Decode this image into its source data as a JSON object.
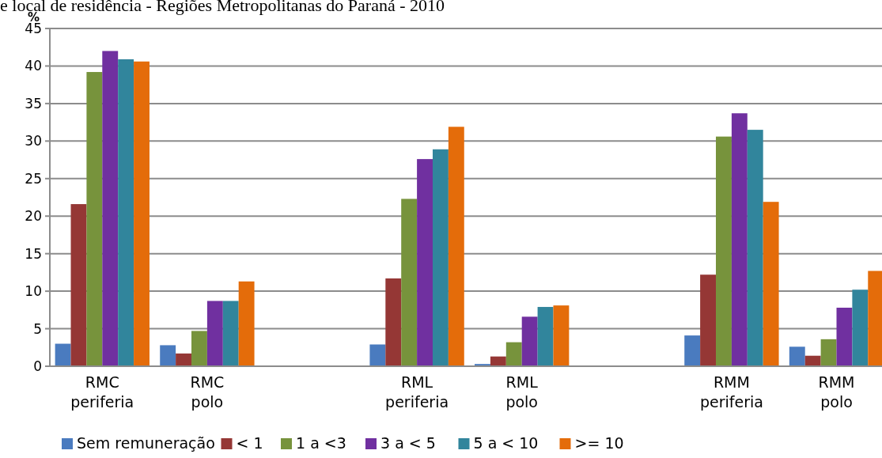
{
  "chart_data": {
    "type": "bar",
    "title": "e local de residência - Regiões Metropolitanas do Paraná - 2010",
    "ylabel": "%",
    "categories": [
      "RMC periferia",
      "RMC polo",
      null,
      "RML periferia",
      "RML polo",
      null,
      "RMM periferia",
      "RMM polo"
    ],
    "series": [
      {
        "name": "Sem remuneração",
        "color": "#4a7bbf",
        "values": [
          3.0,
          2.8,
          null,
          2.9,
          0.3,
          null,
          4.1,
          2.6
        ]
      },
      {
        "name": "< 1",
        "color": "#953735",
        "values": [
          21.6,
          1.7,
          null,
          11.7,
          1.3,
          null,
          12.2,
          1.4
        ]
      },
      {
        "name": "1 a <3",
        "color": "#77933c",
        "values": [
          39.2,
          4.7,
          null,
          22.3,
          3.2,
          null,
          30.6,
          3.6
        ]
      },
      {
        "name": "3 a < 5",
        "color": "#7030a0",
        "values": [
          42.0,
          8.7,
          null,
          27.6,
          6.6,
          null,
          33.7,
          7.8
        ]
      },
      {
        "name": "5 a < 10",
        "color": "#31859c",
        "values": [
          40.9,
          8.7,
          null,
          28.9,
          7.9,
          null,
          31.5,
          10.2
        ]
      },
      {
        "name": ">= 10",
        "color": "#e46c0a",
        "values": [
          40.6,
          11.3,
          null,
          31.9,
          8.1,
          null,
          21.9,
          12.7
        ]
      }
    ],
    "ylim": [
      0,
      45
    ],
    "yticks": [
      0,
      5,
      10,
      15,
      20,
      25,
      30,
      35,
      40,
      45
    ],
    "grid": "y",
    "legend": "bottom"
  }
}
